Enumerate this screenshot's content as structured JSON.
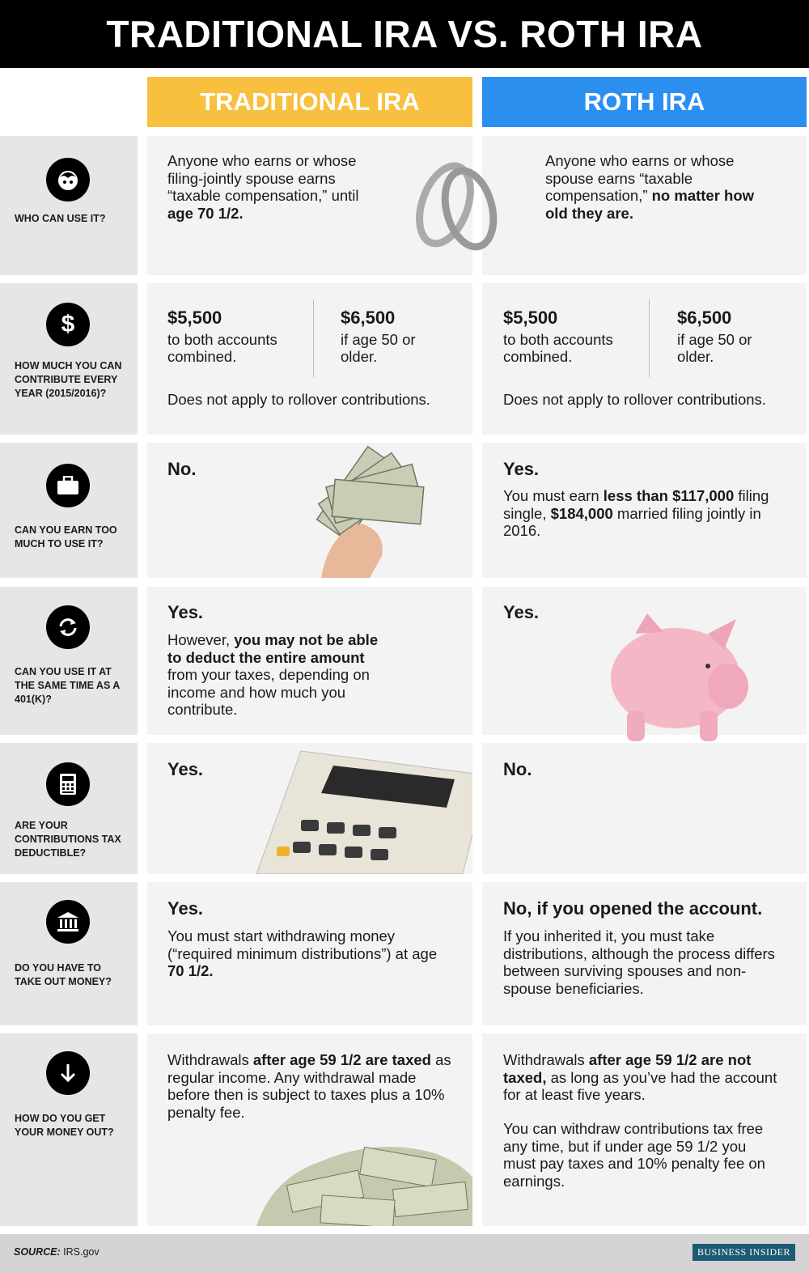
{
  "title": "TRADITIONAL IRA VS. ROTH IRA",
  "columns": {
    "traditional": "TRADITIONAL IRA",
    "roth": "ROTH IRA"
  },
  "colors": {
    "traditional": "#f8c03e",
    "roth": "#2b8ff0"
  },
  "rows": [
    {
      "icon": "person-icon",
      "question": "WHO CAN USE IT?",
      "trad": {
        "pre": "Anyone who earns or whose filing-jointly spouse earns “taxable compensation,” until ",
        "bold": "age 70 1/2."
      },
      "roth": {
        "pre": "Anyone who earns or whose spouse earns “taxable compensation,” ",
        "bold": "no matter how old they are."
      }
    },
    {
      "icon": "dollar-icon",
      "question": "HOW MUCH YOU CAN CONTRIBUTE EVERY YEAR (2015/2016)?",
      "trad": {
        "amount1": "$5,500",
        "desc1": "to both accounts combined.",
        "amount2": "$6,500",
        "desc2": "if age 50 or older.",
        "note": "Does not apply to rollover contributions."
      },
      "roth": {
        "amount1": "$5,500",
        "desc1": "to both accounts combined.",
        "amount2": "$6,500",
        "desc2": "if age 50 or older.",
        "note": "Does not apply to rollover contributions."
      }
    },
    {
      "icon": "briefcase-icon",
      "question": "CAN YOU EARN TOO MUCH TO USE IT?",
      "trad": {
        "answer": "No."
      },
      "roth": {
        "answer": "Yes.",
        "t1": "You must earn ",
        "b1": "less than $117,000",
        "t2": " filing single, ",
        "b2": "$184,000",
        "t3": " married filing jointly in 2016."
      }
    },
    {
      "icon": "refresh-icon",
      "question": "CAN YOU USE IT AT THE SAME TIME AS A 401(K)?",
      "trad": {
        "answer": "Yes.",
        "t1": "However, ",
        "b1": "you may not be able to deduct the entire amount",
        "t2": " from your taxes, depending on income and how much you contribute."
      },
      "roth": {
        "answer": "Yes."
      }
    },
    {
      "icon": "calculator-icon",
      "question": "ARE YOUR CONTRIBUTIONS TAX DEDUCTIBLE?",
      "trad": {
        "answer": "Yes."
      },
      "roth": {
        "answer": "No."
      }
    },
    {
      "icon": "bank-icon",
      "question": "DO YOU HAVE TO TAKE OUT MONEY?",
      "trad": {
        "answer": "Yes.",
        "t1": "You must start withdrawing money (“required minimum distributions”) at age ",
        "b1": "70 1/2."
      },
      "roth": {
        "answer": "No, if you opened the account.",
        "t1": "If you inherited it, you must take distributions, although the process differs between surviving spouses and non-spouse beneficiaries."
      }
    },
    {
      "icon": "arrow-down-icon",
      "question": "HOW DO YOU GET YOUR MONEY OUT?",
      "trad": {
        "t1": "Withdrawals ",
        "b1": "after age 59 1/2 are taxed",
        "t2": " as regular income. Any withdrawal made before then is subject to taxes plus a 10% penalty fee."
      },
      "roth": {
        "t1": "Withdrawals ",
        "b1": "after age 59 1/2 are not taxed,",
        "t2": " as long as you’ve had the account for at least five years.",
        "p2": "You can withdraw contributions tax free any time, but if under age 59 1/2 you must pay taxes and 10% penalty fee on earnings."
      }
    }
  ],
  "footer": {
    "source_label": "SOURCE:",
    "source": " IRS.gov",
    "logo": "BUSINESS INSIDER"
  }
}
